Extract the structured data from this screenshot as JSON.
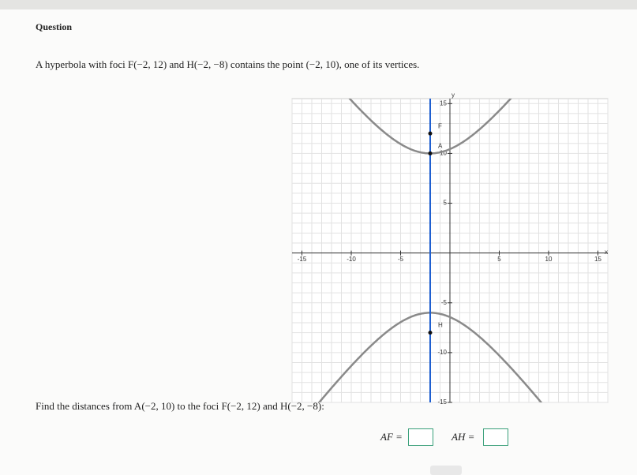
{
  "header": {
    "title": "Question"
  },
  "prompt": "A hyperbola with foci F(−2, 12) and H(−2, −8) contains the point (−2, 10), one of its vertices.",
  "graph": {
    "x_label": "x",
    "y_label": "y",
    "xlim": [
      -16,
      16
    ],
    "ylim": [
      -15,
      15.5
    ],
    "xticks": [
      -15,
      -10,
      -5,
      5,
      10,
      15
    ],
    "yticks": [
      -15,
      -10,
      -5,
      5,
      10,
      15
    ],
    "grid": true,
    "foci": [
      {
        "label": "F",
        "x": -2,
        "y": 12
      },
      {
        "label": "H",
        "x": -2,
        "y": -8
      }
    ],
    "vertex": {
      "label": "A",
      "x": -2,
      "y": 10
    },
    "curve_color": "#8a8a8a",
    "line_color": "#1e5fd0"
  },
  "task": "Find the distances from A(−2, 10) to the foci F(−2, 12) and H(−2, −8):",
  "answers": [
    {
      "label": "AF ="
    },
    {
      "label": "AH ="
    }
  ]
}
